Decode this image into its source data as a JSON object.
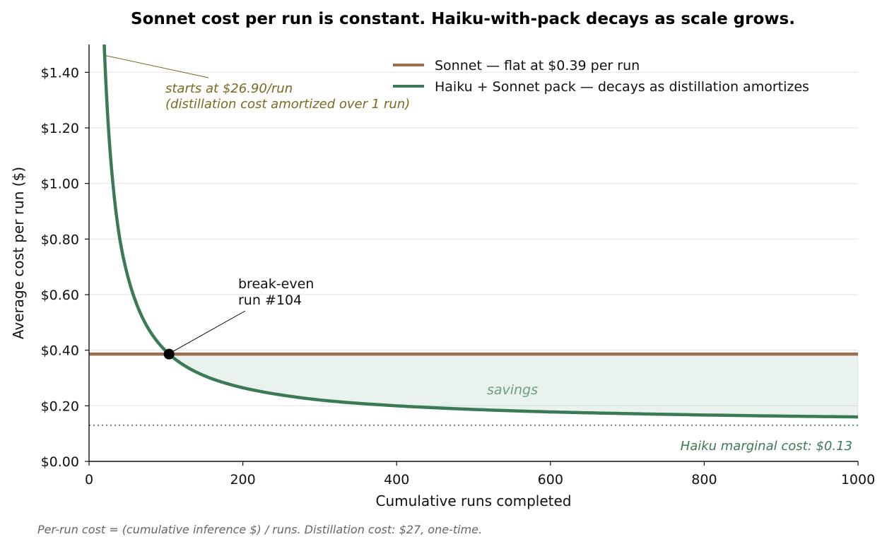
{
  "chart_data": {
    "type": "line",
    "title": "Sonnet cost per run is constant. Haiku-with-pack decays as scale grows.",
    "xlabel": "Cumulative runs completed",
    "ylabel": "Average cost per run ($)",
    "xlim": [
      0,
      1000
    ],
    "ylim": [
      0,
      1.5
    ],
    "x_ticks": [
      0,
      200,
      400,
      600,
      800,
      1000
    ],
    "x_tick_labels": [
      "0",
      "200",
      "400",
      "600",
      "800",
      "1000"
    ],
    "y_ticks": [
      0,
      0.2,
      0.4,
      0.6,
      0.8,
      1.0,
      1.2,
      1.4
    ],
    "y_tick_labels": [
      "$0.00",
      "$0.20",
      "$0.40",
      "$0.60",
      "$0.80",
      "$1.00",
      "$1.20",
      "$1.40"
    ],
    "grid": "horizontal",
    "legend_position": "top-right",
    "series": [
      {
        "name": "Sonnet — flat at $0.39 per run",
        "color": "#9a6e4e",
        "x": [
          0,
          1000
        ],
        "y": [
          0.386,
          0.386
        ]
      },
      {
        "name": "Haiku + Sonnet pack — decays as distillation amortizes",
        "color": "#3b7a57",
        "x": [
          18,
          20,
          25,
          30,
          40,
          50,
          60,
          70,
          80,
          90,
          104,
          120,
          150,
          200,
          250,
          300,
          400,
          500,
          600,
          700,
          800,
          900,
          1000
        ],
        "y": [
          1.63,
          1.48,
          1.21,
          1.03,
          0.8,
          0.67,
          0.58,
          0.514,
          0.465,
          0.427,
          0.386,
          0.352,
          0.308,
          0.265,
          0.239,
          0.221,
          0.2,
          0.187,
          0.178,
          0.172,
          0.167,
          0.163,
          0.16
        ]
      }
    ],
    "reference_line": {
      "label": "Haiku marginal cost: $0.13",
      "y": 0.13,
      "color": "#5f8f7e"
    },
    "break_even": {
      "x": 104,
      "y": 0.386,
      "label_line1": "break-even",
      "label_line2": "run #104"
    },
    "start_annotation": {
      "x": 22,
      "y": 1.46,
      "line1": "starts at $26.90/run",
      "line2": "(distillation cost amortized over 1 run)",
      "color": "#786a1e"
    },
    "savings_label": "savings",
    "savings_color": "#6ba083",
    "footnote": "Per-run cost = (cumulative inference $) / runs. Distillation cost: $27, one-time."
  }
}
